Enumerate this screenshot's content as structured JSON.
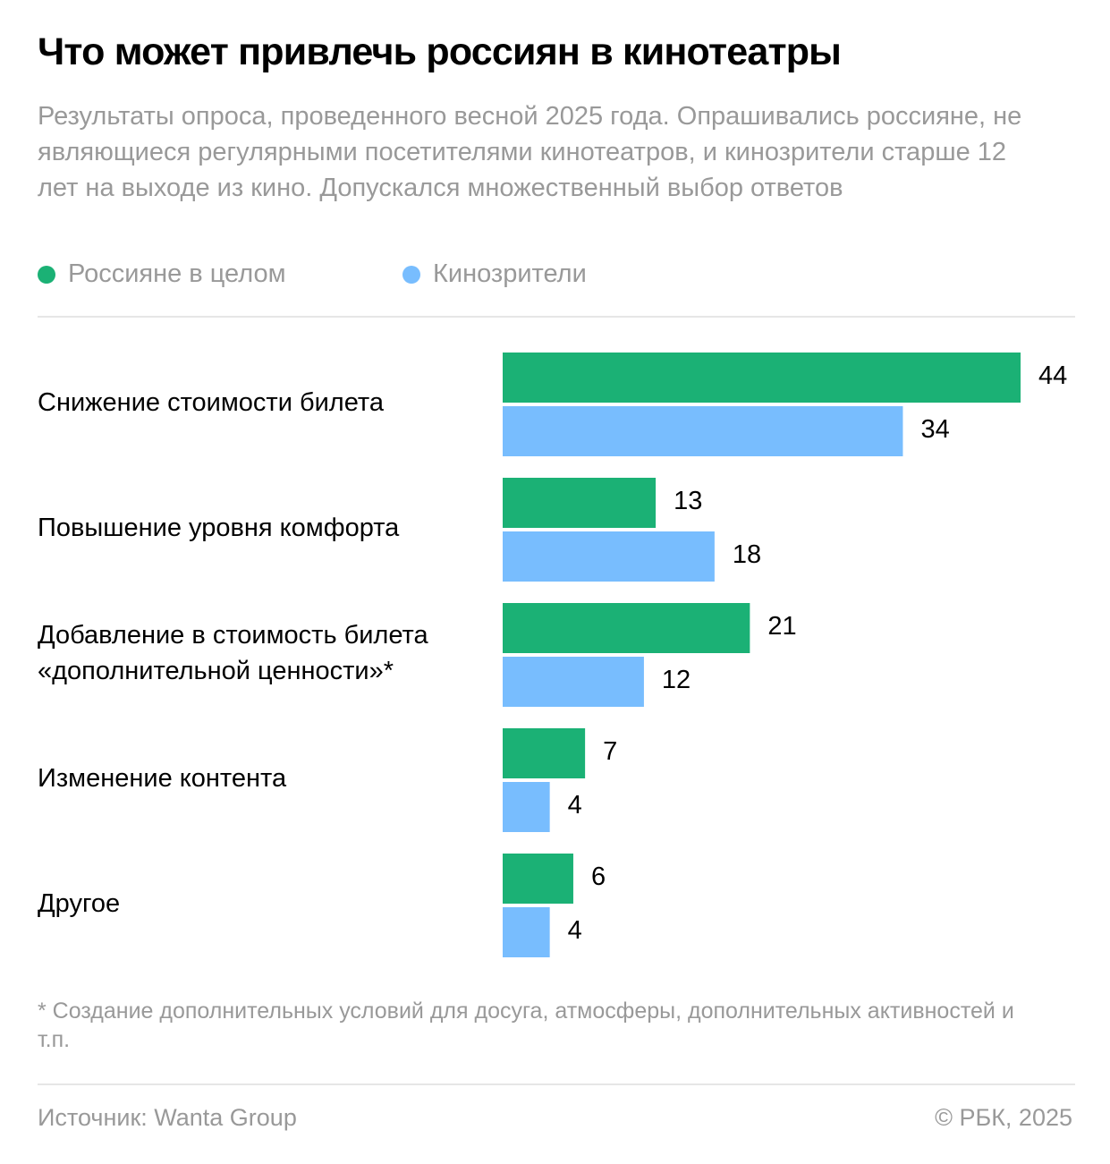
{
  "title": "Что может привлечь россиян в кинотеатры",
  "subtitle": "Результаты опроса, проведенного весной 2025 года. Опрашивались россияне, не являющиеся регулярными посетителями кинотеатров, и кинозрители старше 12 лет на выходе из кино. Допускался множественный выбор ответов",
  "footnote": "* Создание дополнительных условий для досуга, атмосферы, дополнительных активностей и т.п.",
  "source": "Источник: Wanta Group",
  "copyright": "© РБК, 2025",
  "chart_data": {
    "type": "bar",
    "orientation": "horizontal",
    "categories": [
      "Снижение стоимости билета",
      "Повышение уровня комфорта",
      "Добавление в стоимость билета «дополнительной ценности»*",
      "Изменение контента",
      "Другое"
    ],
    "series": [
      {
        "name": "Россияне в целом",
        "color": "#1bb175",
        "values": [
          44,
          13,
          21,
          7,
          6
        ]
      },
      {
        "name": "Кинозрители",
        "color": "#78bdfe",
        "values": [
          34,
          18,
          12,
          4,
          4
        ]
      }
    ],
    "legend_position": "top-left",
    "grid": false,
    "data_labels": true
  }
}
